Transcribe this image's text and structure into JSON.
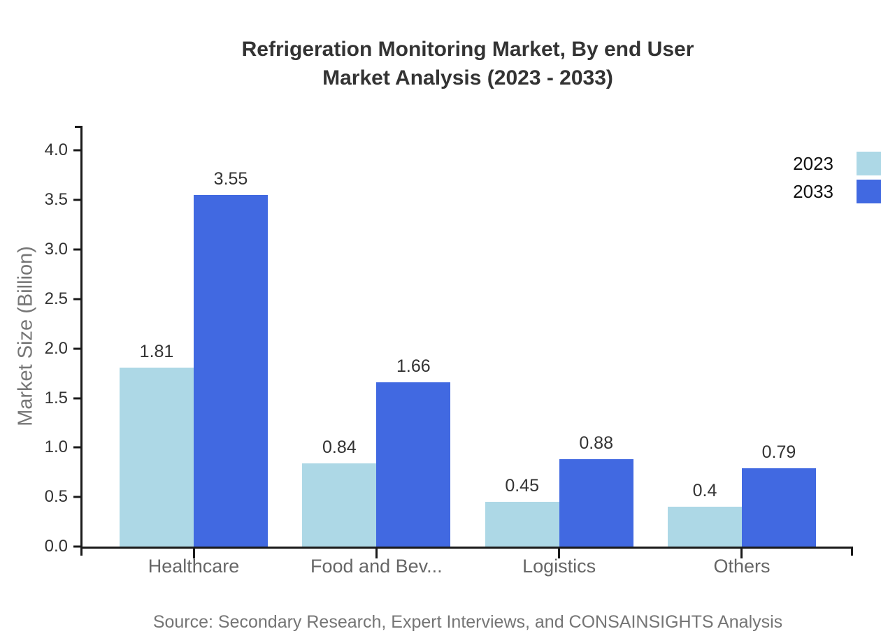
{
  "chart_data": {
    "type": "bar",
    "title": "Refrigeration Monitoring Market, By end User",
    "subtitle": "Market Analysis (2023 - 2033)",
    "ylabel": "Market Size (Billion)",
    "xlabel": "",
    "categories": [
      "Healthcare",
      "Food and Bev...",
      "Logistics",
      "Others"
    ],
    "series": [
      {
        "name": "2023",
        "color": "#ADD8E6",
        "values": [
          1.81,
          0.84,
          0.45,
          0.4
        ]
      },
      {
        "name": "2033",
        "color": "#4169E1",
        "values": [
          3.55,
          1.66,
          0.88,
          0.79
        ]
      }
    ],
    "ylim": [
      0,
      4.25
    ],
    "ytick_labels": [
      "0.0",
      "0.5",
      "1.0",
      "1.5",
      "2.0",
      "2.5",
      "3.0",
      "3.5",
      "4.0"
    ],
    "grid": false,
    "legend_position": "top-right",
    "axis_color": "#1a1a1a",
    "source": "Source: Secondary Research, Expert Interviews, and CONSAINSIGHTS Analysis"
  }
}
